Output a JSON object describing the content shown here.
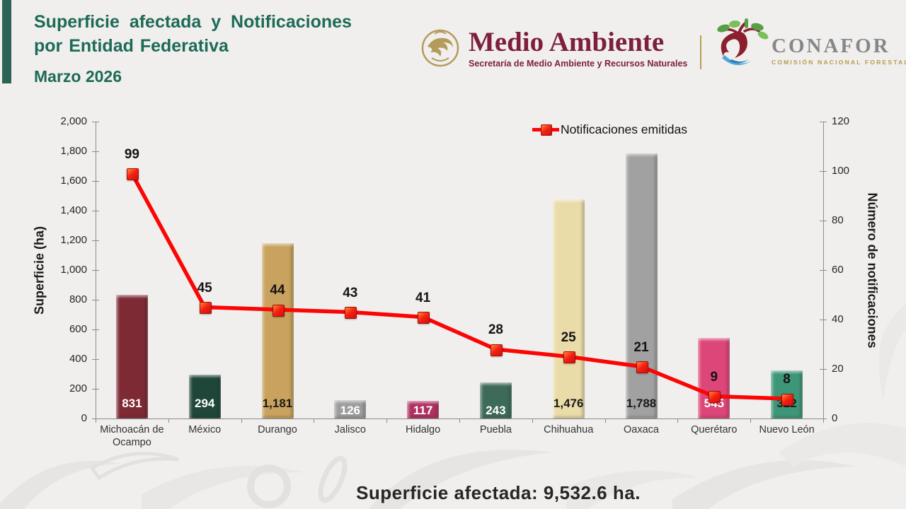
{
  "header": {
    "title_line1": "Superficie afectada y Notificaciones",
    "title_line2": "por Entidad Federativa",
    "date": "Marzo 2026",
    "semarnat": {
      "name": "Medio Ambiente",
      "tagline": "Secretaría de Medio Ambiente y Recursos Naturales"
    },
    "conafor": {
      "name": "CONAFOR",
      "tagline": "COMISIÓN NACIONAL FORESTAL"
    }
  },
  "chart_data": {
    "type": "bar+line",
    "categories": [
      "Michoacán de Ocampo",
      "México",
      "Durango",
      "Jalisco",
      "Hidalgo",
      "Puebla",
      "Chihuahua",
      "Oaxaca",
      "Querétaro",
      "Nuevo León"
    ],
    "series": [
      {
        "name": "Superficie (ha)",
        "type": "bar",
        "axis": "left",
        "values": [
          831,
          294,
          1181,
          126,
          117,
          243,
          1476,
          1788,
          545,
          322
        ],
        "value_labels": [
          "831",
          "294",
          "1,181",
          "126",
          "117",
          "243",
          "1,476",
          "1,788",
          "545",
          "322"
        ],
        "bar_colors": [
          "#7E2A35",
          "#20463A",
          "#C8A25E",
          "#9D9D9D",
          "#B03062",
          "#3D6B58",
          "#EADCA9",
          "#A1A1A1",
          "#DC4678",
          "#3E9678"
        ],
        "label_colors": [
          "#FFFFFF",
          "#FFFFFF",
          "#1A1A1A",
          "#FFFFFF",
          "#FFFFFF",
          "#FFFFFF",
          "#1A1A1A",
          "#1A1A1A",
          "#FFFFFF",
          "#1A1A1A"
        ]
      },
      {
        "name": "Notificaciones emitidas",
        "type": "line",
        "axis": "right",
        "values": [
          99,
          45,
          44,
          43,
          41,
          28,
          25,
          21,
          9,
          8
        ],
        "value_labels": [
          "99",
          "45",
          "44",
          "43",
          "41",
          "28",
          "25",
          "21",
          "9",
          "8"
        ],
        "color": "#FB0505"
      }
    ],
    "left_axis": {
      "title": "Superficie (ha)",
      "min": 0,
      "max": 2000,
      "tick_values": [
        0,
        200,
        400,
        600,
        800,
        1000,
        1200,
        1400,
        1600,
        1800,
        2000
      ],
      "tick_labels": [
        "0",
        "200",
        "400",
        "600",
        "800",
        "1,000",
        "1,200",
        "1,400",
        "1,600",
        "1,800",
        "2,000"
      ]
    },
    "right_axis": {
      "title": "Número de notificaciones",
      "min": 0,
      "max": 120,
      "tick_values": [
        0,
        20,
        40,
        60,
        80,
        100,
        120
      ],
      "tick_labels": [
        "0",
        "20",
        "40",
        "60",
        "80",
        "100",
        "120"
      ]
    },
    "legend": {
      "label": "Notificaciones emitidas",
      "position": "top"
    },
    "grid": false
  },
  "footer": {
    "summary": "Superficie afectada: 9,532.6 ha."
  }
}
